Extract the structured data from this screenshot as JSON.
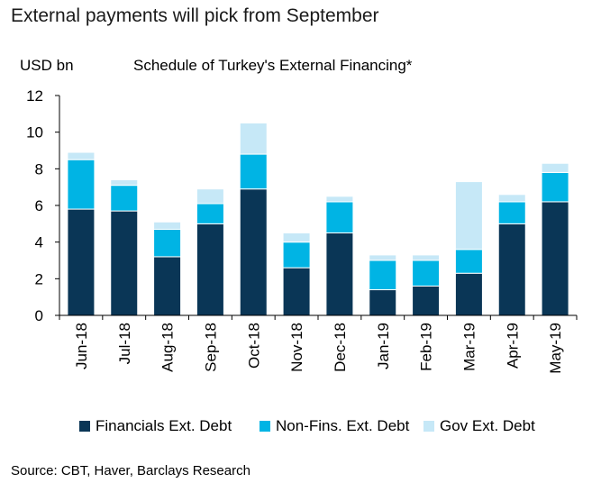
{
  "title": "External payments will pick from September",
  "chart_data": {
    "type": "bar",
    "stacked": true,
    "title": "Schedule of Turkey's External Financing*",
    "ylabel": "USD bn",
    "xlabel": "",
    "ylim": [
      0,
      12
    ],
    "yticks": [
      "0",
      "2",
      "4",
      "6",
      "8",
      "10",
      "12"
    ],
    "grid": false,
    "legend_position": "bottom",
    "categories": [
      "Jun-18",
      "Jul-18",
      "Aug-18",
      "Sep-18",
      "Oct-18",
      "Nov-18",
      "Dec-18",
      "Jan-19",
      "Feb-19",
      "Mar-19",
      "Apr-19",
      "May-19"
    ],
    "series": [
      {
        "name": "Financials Ext. Debt",
        "color": "#0a3656",
        "values": [
          5.8,
          5.7,
          3.2,
          5.0,
          6.9,
          2.6,
          4.5,
          1.4,
          1.6,
          2.3,
          5.0,
          6.2
        ]
      },
      {
        "name": "Non-Fins. Ext. Debt",
        "color": "#00b4e4",
        "values": [
          2.7,
          1.4,
          1.5,
          1.1,
          1.9,
          1.4,
          1.7,
          1.6,
          1.4,
          1.3,
          1.2,
          1.6
        ]
      },
      {
        "name": "Gov Ext. Debt",
        "color": "#c6e8f7",
        "values": [
          0.4,
          0.3,
          0.4,
          0.8,
          1.7,
          0.5,
          0.3,
          0.3,
          0.3,
          3.7,
          0.4,
          0.5
        ]
      }
    ]
  },
  "source": "Source: CBT, Haver, Barclays Research"
}
